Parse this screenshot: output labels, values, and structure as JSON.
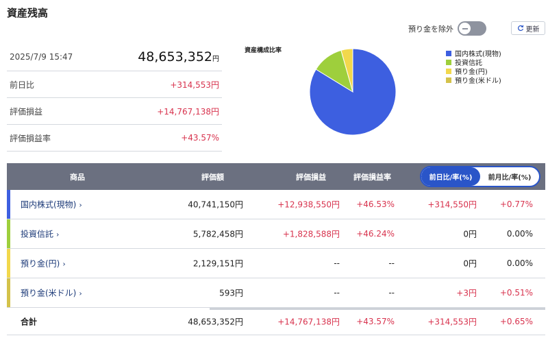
{
  "title": "資産残高",
  "controls": {
    "exclude_label": "預り金を除外",
    "refresh_label": "更新"
  },
  "summary": {
    "datetime": "2025/7/9 15:47",
    "total_value": "48,653,352",
    "total_unit": "円",
    "rows": [
      {
        "label": "前日比",
        "value": "+314,553円"
      },
      {
        "label": "評価損益",
        "value": "+14,767,138円"
      },
      {
        "label": "評価損益率",
        "value": "+43.57%"
      }
    ]
  },
  "chart_data": {
    "type": "pie",
    "title": "資産構成比率",
    "legend_position": "right",
    "labels": [
      "国内株式(現物)",
      "投資信託",
      "預り金(円)",
      "預り金(米ドル)"
    ],
    "values": [
      40741150,
      5782458,
      2129151,
      593
    ],
    "colors": [
      "#3d5fe0",
      "#9ecf3c",
      "#f2d84c",
      "#d4c24a"
    ]
  },
  "table": {
    "headers": {
      "product": "商品",
      "valuation": "評価額",
      "pl": "評価損益",
      "pl_rate": "評価損益率"
    },
    "toggle": {
      "daily": "前日比/率(%)",
      "monthly": "前月比/率(%)"
    },
    "rows": [
      {
        "name": "国内株式(現物)",
        "valuation": "40,741,150円",
        "pl": "+12,938,550円",
        "pl_rate": "+46.53%",
        "change": "+314,550円",
        "change_rate": "+0.77%",
        "color": "#3d5fe0"
      },
      {
        "name": "投資信託",
        "valuation": "5,782,458円",
        "pl": "+1,828,588円",
        "pl_rate": "+46.24%",
        "change": "0円",
        "change_rate": "0.00%",
        "color": "#9ecf3c"
      },
      {
        "name": "預り金(円)",
        "valuation": "2,129,151円",
        "pl": "--",
        "pl_rate": "--",
        "change": "0円",
        "change_rate": "0.00%",
        "color": "#f2d84c"
      },
      {
        "name": "預り金(米ドル)",
        "valuation": "593円",
        "pl": "--",
        "pl_rate": "--",
        "change": "+3円",
        "change_rate": "+0.51%",
        "color": "#d4c24a"
      }
    ],
    "total": {
      "name": "合計",
      "valuation": "48,653,352円",
      "pl": "+14,767,138円",
      "pl_rate": "+43.57%",
      "change": "+314,553円",
      "change_rate": "+0.65%"
    }
  }
}
